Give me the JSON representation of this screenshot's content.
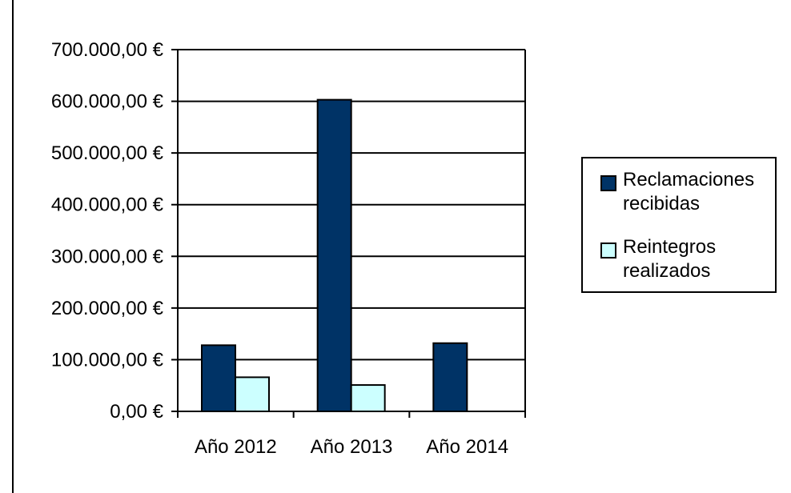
{
  "chart_data": {
    "type": "bar",
    "categories": [
      "Año 2012",
      "Año 2013",
      "Año 2014"
    ],
    "series": [
      {
        "name": "Reclamaciones recibidas",
        "values": [
          128000,
          603000,
          132000
        ],
        "color": "#003366"
      },
      {
        "name": "Reintegros realizados",
        "values": [
          66000,
          51000,
          0
        ],
        "color": "#CCFFFF"
      }
    ],
    "y_ticks": [
      "0,00 €",
      "100.000,00 €",
      "200.000,00 €",
      "300.000,00 €",
      "400.000,00 €",
      "500.000,00 €",
      "600.000,00 €",
      "700.000,00 €"
    ],
    "ylim": [
      0,
      700000
    ],
    "grid": true,
    "legend_position": "right",
    "title": "",
    "xlabel": "",
    "ylabel": ""
  },
  "legend": {
    "items": [
      {
        "label_line1": "Reclamaciones",
        "label_line2": "recibidas",
        "color": "#003366"
      },
      {
        "label_line1": "Reintegros",
        "label_line2": "realizados",
        "color": "#CCFFFF"
      }
    ]
  }
}
